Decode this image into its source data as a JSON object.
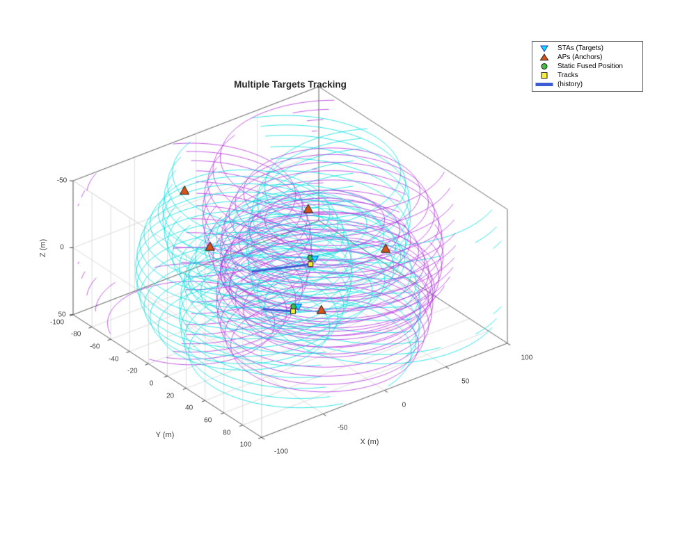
{
  "chart_data": {
    "type": "line",
    "subtype": "3d-multi-target-tracking-scene",
    "title": "Multiple Targets Tracking",
    "xlabel": "X (m)",
    "ylabel": "Y (m)",
    "zlabel": "Z (m)",
    "xlim": [
      -100,
      100
    ],
    "ylim": [
      -100,
      100
    ],
    "zlim": [
      -50,
      50
    ],
    "xticks": [
      -100,
      -50,
      0,
      50,
      100
    ],
    "yticks": [
      -100,
      -80,
      -60,
      -40,
      -20,
      0,
      20,
      40,
      60,
      80,
      100
    ],
    "zticks": [
      -50,
      0,
      50
    ],
    "grid": true,
    "legend_position": "top-right",
    "view": {
      "azimuth": -37.5,
      "elevation": 30,
      "zdir": "reverse"
    },
    "aps": [
      [
        -40,
        -60,
        -40
      ],
      [
        30,
        -20,
        -20
      ],
      [
        -50,
        -20,
        -20
      ],
      [
        70,
        10,
        10
      ],
      [
        10,
        20,
        30
      ]
    ],
    "stas": [
      [
        20,
        0,
        5
      ],
      [
        -5,
        15,
        25
      ]
    ],
    "fused_positions": [
      [
        18,
        -2,
        4
      ],
      [
        -8,
        14,
        24
      ]
    ],
    "tracks": [
      {
        "points": [
          [
            -25,
            -8,
            2
          ],
          [
            -5,
            -3,
            4
          ],
          [
            15,
            2,
            6
          ]
        ]
      },
      {
        "points": [
          [
            -30,
            10,
            20
          ],
          [
            -10,
            16,
            26
          ]
        ]
      }
    ],
    "measurement_spheres": [
      {
        "center": [
          -50,
          -40,
          -10
        ],
        "radius": 78,
        "color": "#b333dd"
      },
      {
        "center": [
          20,
          -30,
          -15
        ],
        "radius": 80,
        "color": "#00e0e0"
      },
      {
        "center": [
          60,
          20,
          0
        ],
        "radius": 88,
        "color": "#00e0e0"
      },
      {
        "center": [
          30,
          5,
          0
        ],
        "radius": 72,
        "color": "#b333dd"
      },
      {
        "center": [
          -15,
          30,
          18
        ],
        "radius": 78,
        "color": "#00e0e0"
      },
      {
        "center": [
          5,
          30,
          15
        ],
        "radius": 70,
        "color": "#b333dd"
      },
      {
        "center": [
          55,
          -25,
          -5
        ],
        "radius": 85,
        "color": "#b333dd"
      },
      {
        "center": [
          -30,
          -10,
          0
        ],
        "radius": 70,
        "color": "#00e0e0"
      }
    ],
    "rings_per_sphere": 18
  },
  "style": {
    "ap_fill": "#d95319",
    "ap_edge": "#1a1a1a",
    "sta_fill": "#00e5ff",
    "sta_edge": "#2233cc",
    "fused_fill": "#3fbf3f",
    "fused_edge": "#1a1a1a",
    "track_fill": "#f5ef3a",
    "track_edge": "#1a1a1a",
    "track_line": "#3d5bd4",
    "grid_color": "#dcdcdc",
    "box_color": "#6a6a6a",
    "tick_color": "#3c3c3c"
  },
  "legend": {
    "entries": [
      {
        "label": "STAs (Targets)",
        "marker": "triangle-down",
        "fill": "#00e5ff",
        "edge": "#2233cc"
      },
      {
        "label": "APs (Anchors)",
        "marker": "triangle-up",
        "fill": "#d95319",
        "edge": "#1a1a1a"
      },
      {
        "label": "Static Fused Position",
        "marker": "circle",
        "fill": "#3fbf3f",
        "edge": "#1a1a1a"
      },
      {
        "label": "Tracks",
        "marker": "square",
        "fill": "#f5ef3a",
        "edge": "#1a1a1a"
      },
      {
        "label": "(history)",
        "marker": "line",
        "fill": "#3d5bd4",
        "edge": "#3d5bd4"
      }
    ]
  }
}
